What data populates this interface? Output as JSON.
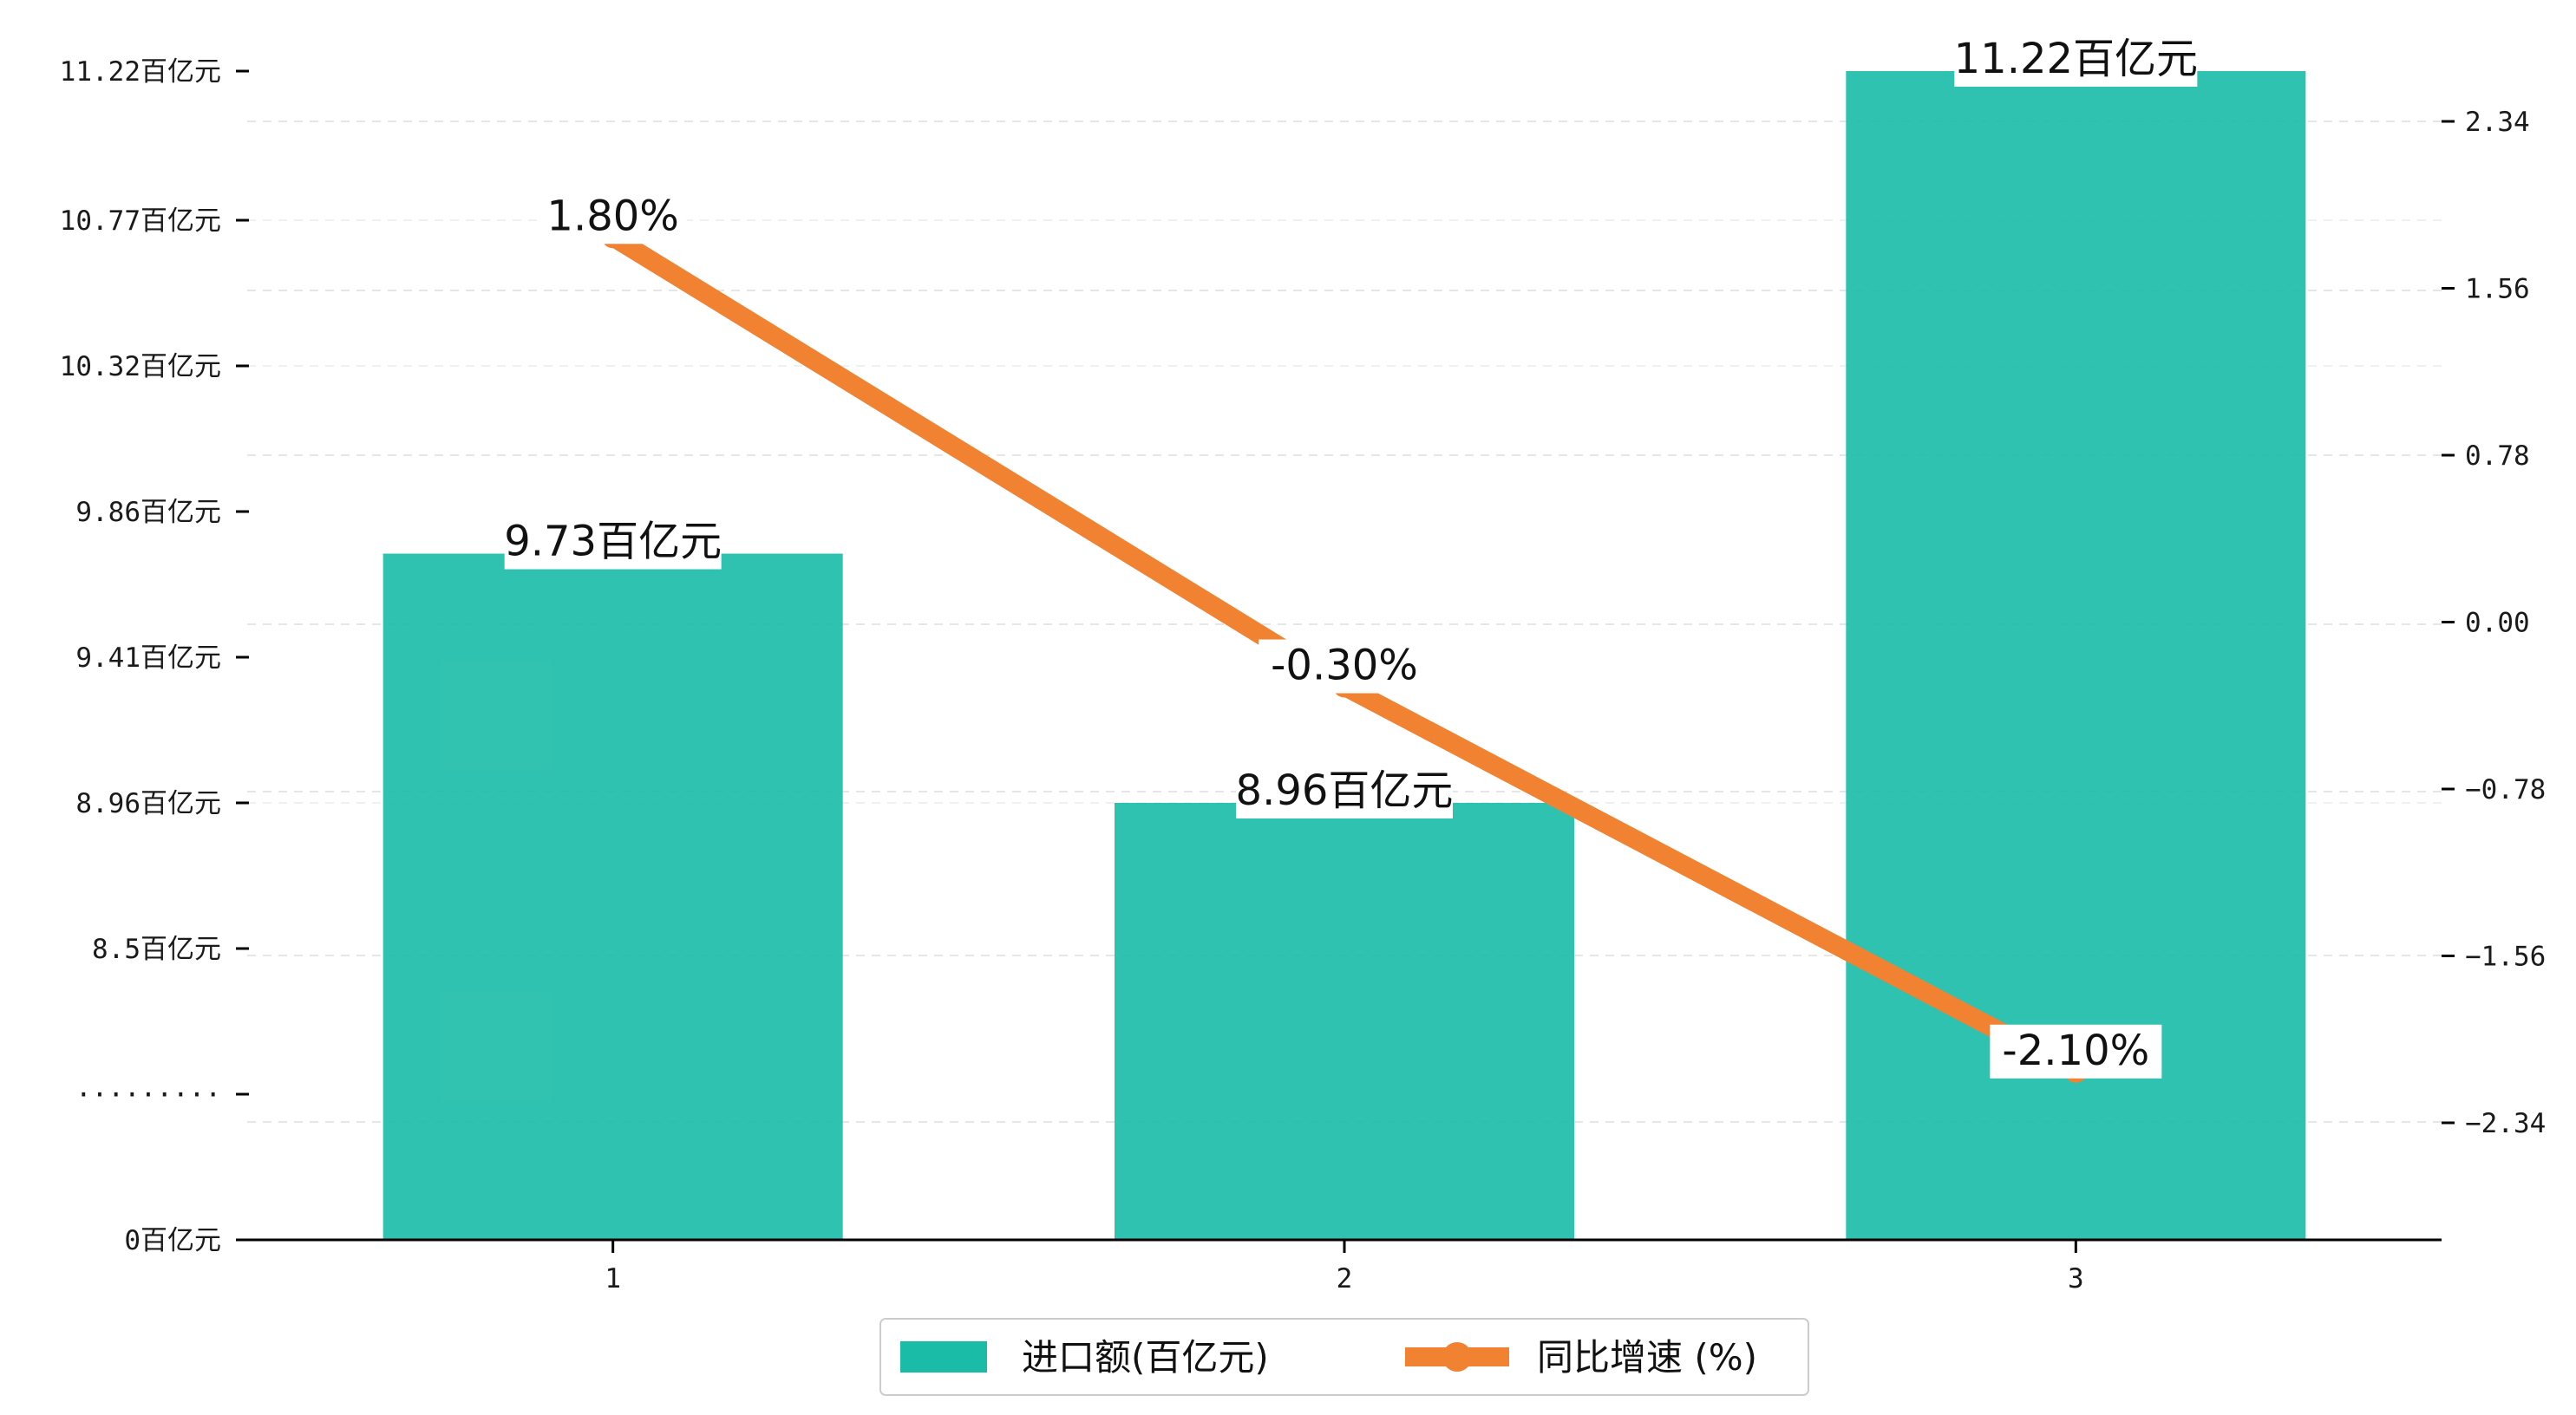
{
  "chart_data": {
    "type": "bar",
    "categories": [
      "1",
      "2",
      "3"
    ],
    "series": [
      {
        "name": "进口额(百亿元)",
        "type": "bar",
        "axis": "left",
        "values": [
          9.73,
          8.96,
          11.22
        ],
        "labels": [
          "9.73百亿元",
          "8.96百亿元",
          "11.22百亿元"
        ],
        "color": "#1ABBA7"
      },
      {
        "name": "同比增速 (%)",
        "type": "line",
        "axis": "right",
        "values": [
          1.8,
          -0.3,
          -2.1
        ],
        "labels": [
          "1.80%",
          "-0.30%",
          "-2.10%"
        ],
        "color": "#F08232"
      }
    ],
    "left_axis": {
      "ticks": [
        "0百亿元",
        "·········",
        "8.5百亿元",
        "8.96百亿元",
        "9.41百亿元",
        "9.86百亿元",
        "10.32百亿元",
        "10.77百亿元",
        "11.22百亿元"
      ],
      "broken": true
    },
    "right_axis": {
      "ticks": [
        "-2.34",
        "-1.56",
        "-0.78",
        "0.00",
        "0.78",
        "1.56",
        "2.34"
      ],
      "ylim": [
        -2.9,
        2.95
      ]
    },
    "grid": true,
    "legend_position": "bottom-center"
  },
  "colors": {
    "bar": "#1ABBA7",
    "line": "#F08232",
    "grid": "#e6e6e6",
    "axis": "#000000"
  }
}
